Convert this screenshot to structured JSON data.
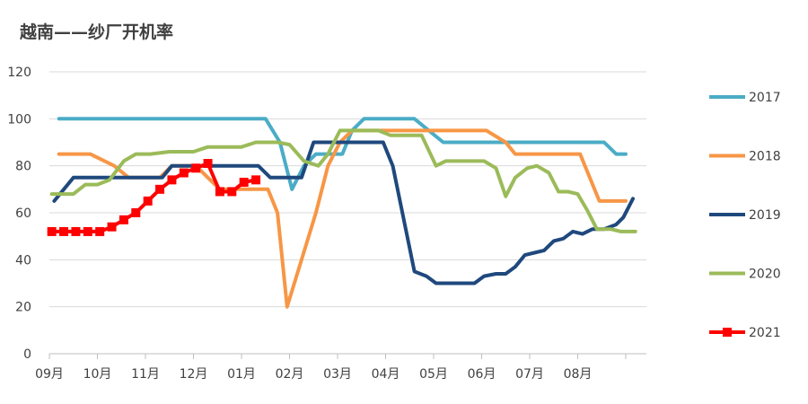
{
  "chart_data": {
    "type": "line",
    "title": "越南——纱厂开机率",
    "xlabel": "",
    "ylabel": "",
    "ylim": [
      0,
      120
    ],
    "yticks": [
      0,
      20,
      40,
      60,
      80,
      100,
      120
    ],
    "xlim": [
      0,
      12
    ],
    "xticks": [
      {
        "pos": 0,
        "label": "09月"
      },
      {
        "pos": 1,
        "label": "10月"
      },
      {
        "pos": 2,
        "label": "11月"
      },
      {
        "pos": 3,
        "label": "12月"
      },
      {
        "pos": 4,
        "label": "01月"
      },
      {
        "pos": 5,
        "label": "02月"
      },
      {
        "pos": 6,
        "label": "03月"
      },
      {
        "pos": 7,
        "label": "04月"
      },
      {
        "pos": 8,
        "label": "05月"
      },
      {
        "pos": 9,
        "label": "06月"
      },
      {
        "pos": 10,
        "label": "07月"
      },
      {
        "pos": 11,
        "label": "08月"
      }
    ],
    "grid": true,
    "legend_position": "right",
    "series": [
      {
        "name": "2017",
        "color": "#4BACC6",
        "marker": "none",
        "points": [
          [
            0.2,
            100
          ],
          [
            4.5,
            100
          ],
          [
            4.8,
            90
          ],
          [
            5.05,
            70
          ],
          [
            5.3,
            80
          ],
          [
            5.55,
            85
          ],
          [
            6.1,
            85
          ],
          [
            6.3,
            95
          ],
          [
            6.55,
            100
          ],
          [
            7.6,
            100
          ],
          [
            7.9,
            95
          ],
          [
            8.2,
            90
          ],
          [
            8.8,
            90
          ],
          [
            9.2,
            90
          ],
          [
            11.55,
            90
          ],
          [
            11.8,
            85
          ],
          [
            12,
            85
          ]
        ]
      },
      {
        "name": "2018",
        "color": "#F79646",
        "marker": "none",
        "points": [
          [
            0.2,
            85
          ],
          [
            0.85,
            85
          ],
          [
            1.35,
            80
          ],
          [
            1.65,
            75
          ],
          [
            2.0,
            75
          ],
          [
            2.3,
            75
          ],
          [
            2.55,
            80
          ],
          [
            3.05,
            80
          ],
          [
            3.3,
            75
          ],
          [
            3.55,
            70
          ],
          [
            4.55,
            70
          ],
          [
            4.75,
            60
          ],
          [
            4.95,
            20
          ],
          [
            5.25,
            40
          ],
          [
            5.55,
            60
          ],
          [
            5.8,
            80
          ],
          [
            6.05,
            90
          ],
          [
            6.3,
            95
          ],
          [
            9.1,
            95
          ],
          [
            9.5,
            90
          ],
          [
            9.7,
            85
          ],
          [
            11.05,
            85
          ],
          [
            11.25,
            75
          ],
          [
            11.45,
            65
          ],
          [
            12,
            65
          ]
        ]
      },
      {
        "name": "2019",
        "color": "#1F497D",
        "marker": "none",
        "points": [
          [
            0.1,
            65
          ],
          [
            0.5,
            75
          ],
          [
            1.05,
            75
          ],
          [
            2.35,
            75
          ],
          [
            2.55,
            80
          ],
          [
            4.35,
            80
          ],
          [
            4.6,
            75
          ],
          [
            5.05,
            75
          ],
          [
            5.25,
            75
          ],
          [
            5.5,
            90
          ],
          [
            6.95,
            90
          ],
          [
            7.15,
            80
          ],
          [
            7.4,
            55
          ],
          [
            7.6,
            35
          ],
          [
            7.85,
            33
          ],
          [
            8.05,
            30
          ],
          [
            8.5,
            30
          ],
          [
            8.85,
            30
          ],
          [
            9.05,
            33
          ],
          [
            9.3,
            34
          ],
          [
            9.5,
            34
          ],
          [
            9.7,
            37
          ],
          [
            9.9,
            42
          ],
          [
            10.1,
            43
          ],
          [
            10.3,
            44
          ],
          [
            10.5,
            48
          ],
          [
            10.7,
            49
          ],
          [
            10.9,
            52
          ],
          [
            11.1,
            51
          ],
          [
            11.3,
            53
          ],
          [
            11.55,
            53
          ],
          [
            11.8,
            55
          ],
          [
            11.95,
            58
          ],
          [
            12.15,
            66
          ]
        ]
      },
      {
        "name": "2020",
        "color": "#9BBB59",
        "marker": "none",
        "points": [
          [
            0.05,
            68
          ],
          [
            0.5,
            68
          ],
          [
            0.75,
            72
          ],
          [
            1.0,
            72
          ],
          [
            1.25,
            74
          ],
          [
            1.55,
            82
          ],
          [
            1.8,
            85
          ],
          [
            2.1,
            85
          ],
          [
            2.5,
            86
          ],
          [
            3.0,
            86
          ],
          [
            3.3,
            88
          ],
          [
            4.0,
            88
          ],
          [
            4.3,
            90
          ],
          [
            4.75,
            90
          ],
          [
            5.0,
            89
          ],
          [
            5.3,
            82
          ],
          [
            5.6,
            80
          ],
          [
            5.8,
            85
          ],
          [
            6.05,
            95
          ],
          [
            6.85,
            95
          ],
          [
            7.1,
            93
          ],
          [
            7.75,
            93
          ],
          [
            8.05,
            80
          ],
          [
            8.25,
            82
          ],
          [
            9.05,
            82
          ],
          [
            9.3,
            79
          ],
          [
            9.5,
            67
          ],
          [
            9.7,
            75
          ],
          [
            9.95,
            79
          ],
          [
            10.15,
            80
          ],
          [
            10.4,
            77
          ],
          [
            10.6,
            69
          ],
          [
            10.8,
            69
          ],
          [
            11.0,
            68
          ],
          [
            11.2,
            61
          ],
          [
            11.4,
            53
          ],
          [
            11.7,
            53
          ],
          [
            11.9,
            52
          ],
          [
            12.2,
            52
          ]
        ]
      },
      {
        "name": "2021",
        "color": "#FF0000",
        "marker": "square",
        "points": [
          [
            0.05,
            52
          ],
          [
            0.3,
            52
          ],
          [
            0.55,
            52
          ],
          [
            0.8,
            52
          ],
          [
            1.05,
            52
          ],
          [
            1.3,
            54
          ],
          [
            1.55,
            57
          ],
          [
            1.8,
            60
          ],
          [
            2.05,
            65
          ],
          [
            2.3,
            70
          ],
          [
            2.55,
            74
          ],
          [
            2.8,
            77
          ],
          [
            3.05,
            79
          ],
          [
            3.3,
            81
          ],
          [
            3.55,
            69
          ],
          [
            3.8,
            69
          ],
          [
            4.05,
            73
          ],
          [
            4.3,
            74
          ]
        ]
      }
    ]
  }
}
